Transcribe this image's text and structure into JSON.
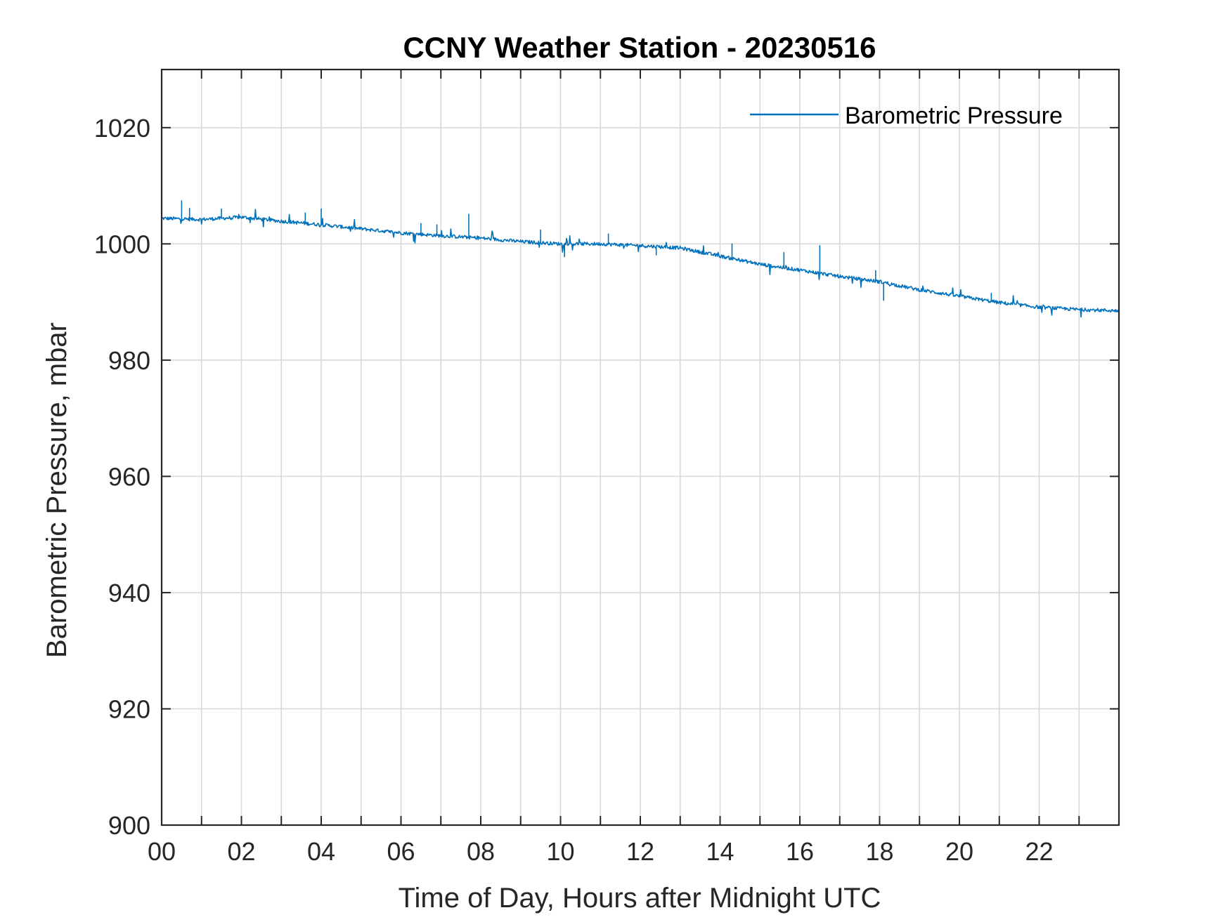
{
  "colors": {
    "series": "#0072BD",
    "axis": "#262626",
    "grid": "#d9d9d9",
    "background": "#ffffff"
  },
  "chart_data": {
    "type": "line",
    "title": "CCNY Weather Station - 20230516",
    "xlabel": "Time of Day, Hours after Midnight UTC",
    "ylabel": "Barometric Pressure, mbar",
    "xlim": [
      0,
      24
    ],
    "ylim": [
      900,
      1030
    ],
    "grid": true,
    "legend_position": "top-right",
    "x_ticks": [
      0,
      2,
      4,
      6,
      8,
      10,
      12,
      14,
      16,
      18,
      20,
      22
    ],
    "x_tick_labels": [
      "00",
      "02",
      "04",
      "06",
      "08",
      "10",
      "12",
      "14",
      "16",
      "18",
      "20",
      "22"
    ],
    "x_minor_ticks": [
      1,
      3,
      5,
      7,
      9,
      11,
      13,
      15,
      17,
      19,
      21,
      23
    ],
    "y_ticks": [
      900,
      920,
      940,
      960,
      980,
      1000,
      1020
    ],
    "y_tick_labels": [
      "900",
      "920",
      "940",
      "960",
      "980",
      "1000",
      "1020"
    ],
    "series": [
      {
        "name": "Barometric Pressure",
        "color": "#0072BD",
        "x": [
          0,
          1,
          2,
          3,
          4,
          5,
          6,
          7,
          8,
          9,
          10,
          11,
          12,
          13,
          14,
          15,
          16,
          17,
          18,
          19,
          20,
          21,
          22,
          23,
          24
        ],
        "y": [
          1004.4,
          1004.2,
          1004.6,
          1003.9,
          1003.3,
          1002.6,
          1001.9,
          1001.4,
          1001.0,
          1000.4,
          1000.0,
          1000.0,
          999.7,
          999.3,
          997.9,
          996.5,
          995.5,
          994.4,
          993.5,
          992.1,
          991.0,
          989.9,
          989.1,
          988.7,
          988.5
        ],
        "spikes": [
          {
            "x": 0.5,
            "y": 1007.4
          },
          {
            "x": 0.7,
            "y": 1006.1
          },
          {
            "x": 1.5,
            "y": 1006.0
          },
          {
            "x": 3.6,
            "y": 1005.3
          },
          {
            "x": 4.0,
            "y": 1006.0
          },
          {
            "x": 6.5,
            "y": 1003.5
          },
          {
            "x": 6.9,
            "y": 1003.3
          },
          {
            "x": 7.7,
            "y": 1005.1
          },
          {
            "x": 9.5,
            "y": 1002.4
          },
          {
            "x": 10.1,
            "y": 997.8
          },
          {
            "x": 11.2,
            "y": 1001.7
          },
          {
            "x": 12.4,
            "y": 998.1
          },
          {
            "x": 14.3,
            "y": 1000.0
          },
          {
            "x": 15.6,
            "y": 998.5
          },
          {
            "x": 16.5,
            "y": 999.7
          },
          {
            "x": 17.9,
            "y": 995.4
          },
          {
            "x": 18.1,
            "y": 990.3
          },
          {
            "x": 20.8,
            "y": 991.5
          }
        ]
      }
    ]
  }
}
